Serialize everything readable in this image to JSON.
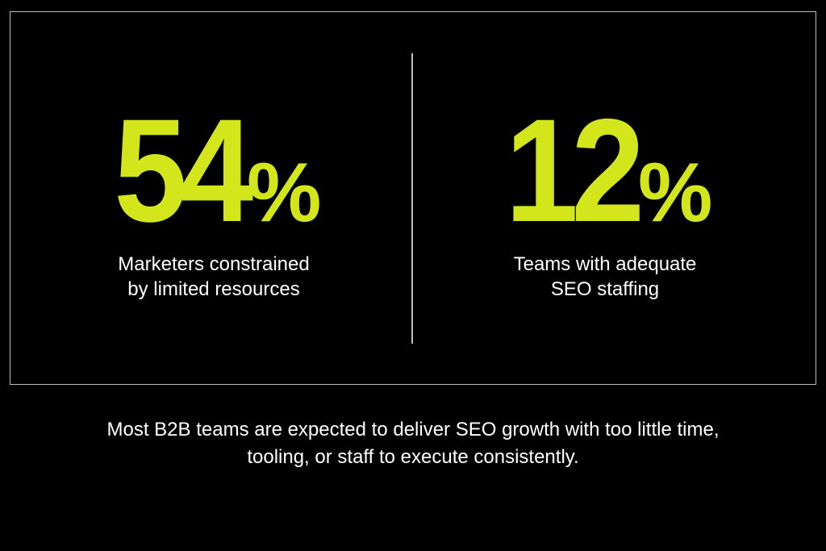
{
  "stats": [
    {
      "value": "54",
      "unit": "%",
      "label_lines": [
        "Marketers constrained",
        "by limited resources"
      ]
    },
    {
      "value": "12",
      "unit": "%",
      "label_lines": [
        "Teams with adequate",
        "SEO staffing"
      ]
    }
  ],
  "footer": {
    "lines": [
      "Most B2B teams are expected to deliver SEO growth with too little time,",
      "tooling, or staff to execute consistently."
    ]
  }
}
